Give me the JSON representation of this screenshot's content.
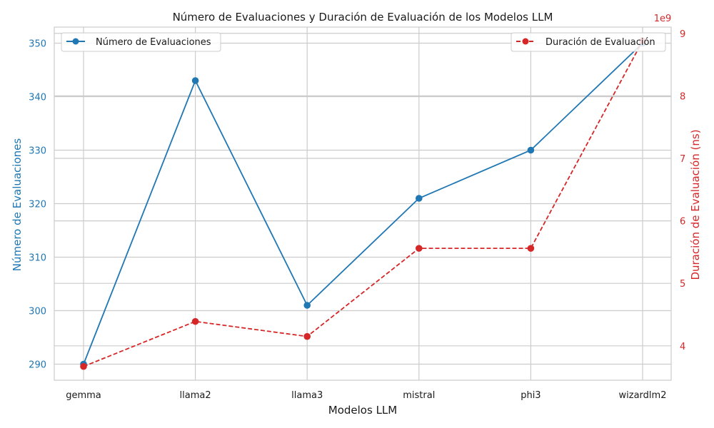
{
  "chart_data": {
    "type": "line",
    "title": "Número de Evaluaciones y Duración de Evaluación de los Modelos LLM",
    "xlabel": "Modelos LLM",
    "categories": [
      "gemma",
      "llama2",
      "llama3",
      "mistral",
      "phi3",
      "wizardlm2"
    ],
    "grid": true,
    "left_axis": {
      "label": "Número de Evaluaciones",
      "ylim": [
        287,
        353
      ],
      "ticks": [
        290,
        300,
        310,
        320,
        330,
        340,
        350
      ],
      "tick_labels": [
        "290",
        "300",
        "310",
        "320",
        "330",
        "340",
        "350"
      ],
      "color": "#1f77b4"
    },
    "right_axis": {
      "label": "Duración de Evaluación (ns)",
      "offset_label": "1e9",
      "ylim": [
        3.45,
        9.1
      ],
      "ticks": [
        4,
        5,
        6,
        7,
        8,
        9
      ],
      "tick_labels": [
        "4",
        "5",
        "6",
        "7",
        "8",
        "9"
      ],
      "color": "#d62728"
    },
    "series": [
      {
        "name": "Número de Evaluaciones",
        "axis": "left",
        "color": "#1f77b4",
        "linestyle": "solid",
        "marker": "circle",
        "values": [
          290,
          343,
          301,
          321,
          330,
          350
        ],
        "legend_position": "top-left"
      },
      {
        "name": "Duración de Evaluación",
        "axis": "right",
        "color": "#d62728",
        "linestyle": "dashed",
        "marker": "circle",
        "values": [
          3.67,
          4.39,
          4.15,
          5.56,
          5.56,
          8.88
        ],
        "legend_position": "top-right"
      }
    ]
  }
}
